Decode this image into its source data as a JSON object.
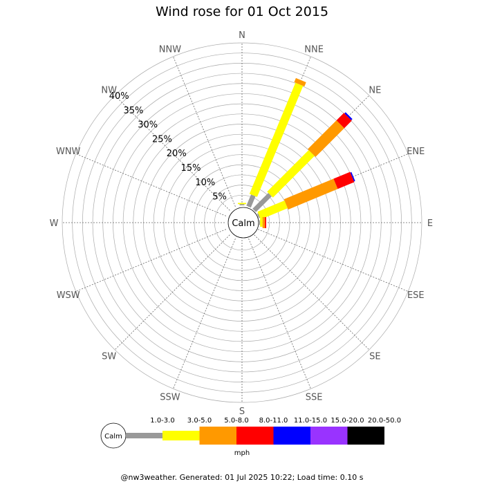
{
  "chart_data": {
    "type": "wind-rose",
    "title": "Wind rose for 01 Oct 2015",
    "directions": [
      "N",
      "NNE",
      "NE",
      "ENE",
      "E",
      "ESE",
      "SE",
      "SSE",
      "S",
      "SSW",
      "SW",
      "WSW",
      "W",
      "WNW",
      "NW",
      "NNW"
    ],
    "radial_ticks": [
      "5%",
      "10%",
      "15%",
      "20%",
      "25%",
      "30%",
      "35%",
      "40%"
    ],
    "radial_max": 40,
    "calm_label": "Calm",
    "unit": "mph",
    "speed_bins": [
      {
        "label": "1.0-3.0",
        "color": "#999999"
      },
      {
        "label": "3.0-5.0",
        "color": "#ffff00"
      },
      {
        "label": "5.0-8.0",
        "color": "#ff9900"
      },
      {
        "label": "8.0-11.0",
        "color": "#ff0000"
      },
      {
        "label": "11.0-15.0",
        "color": "#0000ff"
      },
      {
        "label": "15.0-20.0",
        "color": "#9933ff"
      },
      {
        "label": "20.0-50.0",
        "color": "#000000"
      }
    ],
    "series": [
      {
        "direction": "N",
        "values": [
          0.3,
          0.3,
          0,
          0,
          0,
          0,
          0
        ]
      },
      {
        "direction": "NNE",
        "values": [
          3.0,
          29.6,
          1.1,
          0,
          0,
          0,
          0
        ]
      },
      {
        "direction": "NE",
        "values": [
          5.5,
          14.5,
          10.0,
          2.6,
          0.4,
          0,
          0
        ]
      },
      {
        "direction": "ENE",
        "values": [
          0.3,
          7.2,
          13.2,
          4.4,
          0.3,
          0,
          0
        ]
      },
      {
        "direction": "E",
        "values": [
          0.2,
          0.6,
          0.6,
          0.3,
          0,
          0,
          0
        ]
      }
    ]
  },
  "footer": "@nw3weather. Generated: 01 Jul 2025 10:22; Load time: 0.10 s"
}
